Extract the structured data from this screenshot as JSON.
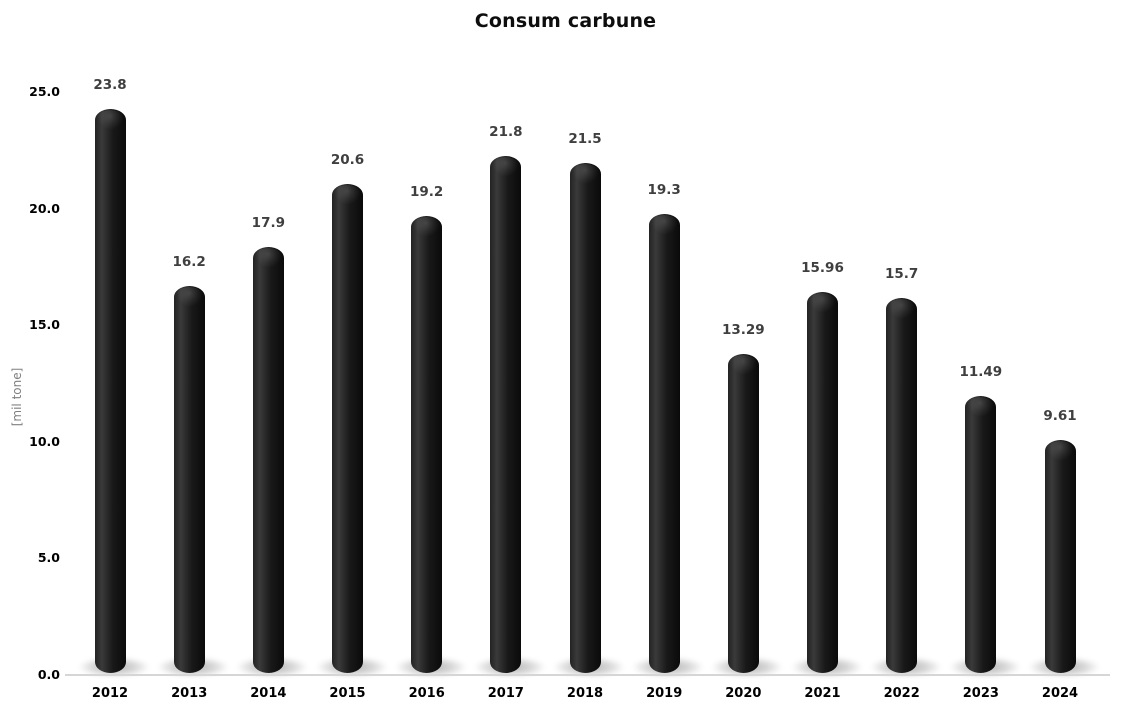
{
  "chart_data": {
    "type": "bar",
    "title": "Consum carbune",
    "ylabel": "[mil tone]",
    "xlabel": "",
    "categories": [
      "2012",
      "2013",
      "2014",
      "2015",
      "2016",
      "2017",
      "2018",
      "2019",
      "2020",
      "2021",
      "2022",
      "2023",
      "2024"
    ],
    "values": [
      23.8,
      16.2,
      17.9,
      20.6,
      19.2,
      21.8,
      21.5,
      19.3,
      13.29,
      15.96,
      15.7,
      11.49,
      9.61
    ],
    "value_labels": [
      "23.8",
      "16.2",
      "17.9",
      "20.6",
      "19.2",
      "21.8",
      "21.5",
      "19.3",
      "13.29",
      "15.96",
      "15.7",
      "11.49",
      "9.61"
    ],
    "y_ticks": [
      "25.0",
      "20.0",
      "15.0",
      "10.0",
      "5.0",
      "0.0"
    ],
    "ylim": [
      0,
      25
    ],
    "grid": false,
    "legend": false,
    "bar_style": "cylinder-3d",
    "colors": {
      "bar": "#1a1a1a",
      "value_label": "#3f3f3f",
      "axis_text": "#000000",
      "y_axis_title": "#7f7f7f",
      "baseline": "#d6d6d6",
      "background": "#ffffff"
    }
  }
}
